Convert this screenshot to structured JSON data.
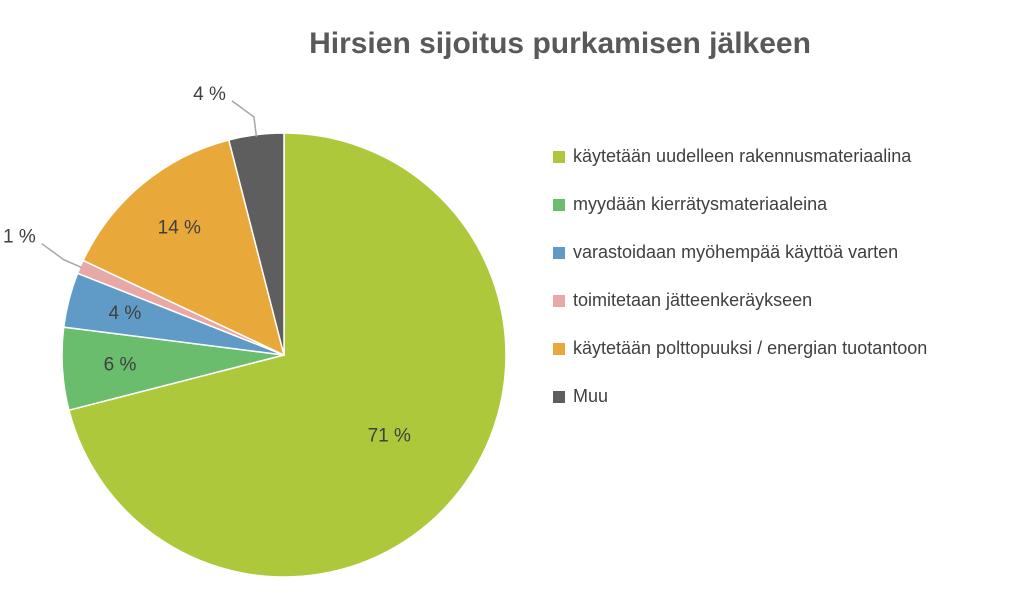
{
  "chart_data": {
    "type": "pie",
    "title": "Hirsien sijoitus purkamisen jälkeen",
    "categories": [
      "käytetään uudelleen rakennusmateriaalina",
      "myydään kierrätysmateriaaleina",
      "varastoidaan myöhempää käyttöä varten",
      "toimitetaan jätteenkeräykseen",
      "käytetään polttopuuksi / energian tuotantoon",
      "Muu"
    ],
    "values": [
      71,
      6,
      4,
      1,
      14,
      4
    ],
    "value_labels": [
      "71 %",
      "6 %",
      "4 %",
      "1 %",
      "14 %",
      "4 %"
    ],
    "colors": [
      "#aec83c",
      "#6bbd6e",
      "#609bc8",
      "#e9a8a8",
      "#e8a93a",
      "#5e5e5e"
    ]
  }
}
